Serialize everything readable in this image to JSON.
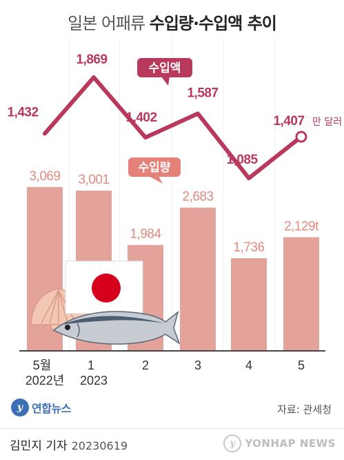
{
  "title": {
    "part1": "일본 어패류 ",
    "part2": "수입량·수입액 추이"
  },
  "chart_data": {
    "type": "bar+line",
    "categories": [
      "5월|2022년",
      "1|2023",
      "2",
      "3",
      "4",
      "5"
    ],
    "bar_series": {
      "name": "수입량",
      "unit": "t",
      "values": [
        3069,
        3001,
        1984,
        2683,
        1736,
        2129
      ],
      "labels": [
        "3,069",
        "3,001",
        "1,984",
        "2,683",
        "1,736",
        "2,129t"
      ]
    },
    "line_series": {
      "name": "수입액",
      "unit": "만 달러",
      "values": [
        1432,
        1869,
        1402,
        1587,
        1085,
        1407
      ],
      "labels": [
        "1,432",
        "1,869",
        "1,402",
        "1,587",
        "1,085",
        "1,407"
      ],
      "last_suffix": "만 달러"
    },
    "colors": {
      "bar": "#e4a39a",
      "line": "#b8395c",
      "bar_label": "#e08a80",
      "line_label": "#b8395c",
      "bar_legend_bg": "#e4827a",
      "line_legend_bg": "#b8395c"
    }
  },
  "source": "자료: 관세청",
  "agency_logo": "연합뉴스",
  "byline": {
    "author": "김민지 기자",
    "date": "20230619"
  },
  "watermark": "YONHAP NEWS"
}
